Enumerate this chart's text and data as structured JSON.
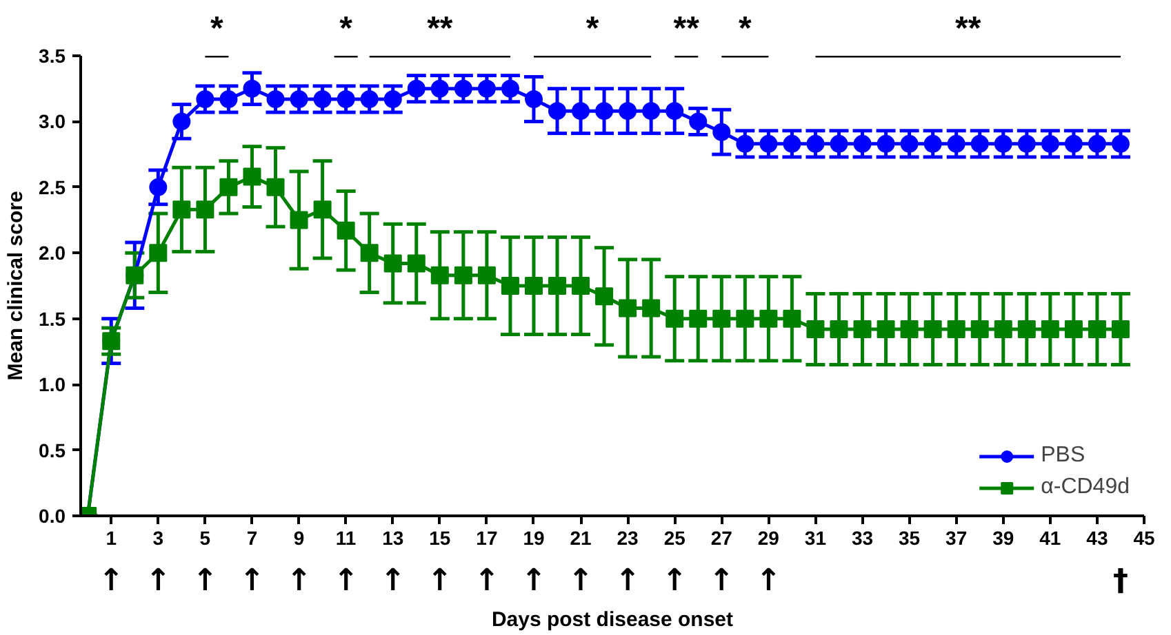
{
  "chart_data": {
    "type": "line",
    "xlabel": "Days post disease onset",
    "ylabel": "Mean clinical score",
    "x": [
      0,
      1,
      2,
      3,
      4,
      5,
      6,
      7,
      8,
      9,
      10,
      11,
      12,
      13,
      14,
      15,
      16,
      17,
      18,
      19,
      20,
      21,
      22,
      23,
      24,
      25,
      26,
      27,
      28,
      29,
      30,
      31,
      32,
      33,
      34,
      35,
      36,
      37,
      38,
      39,
      40,
      41,
      42,
      43,
      44
    ],
    "series": [
      {
        "name": "PBS",
        "color": "#0000ff",
        "marker": "circle",
        "values": [
          0,
          1.33,
          1.83,
          2.5,
          3.0,
          3.17,
          3.17,
          3.25,
          3.17,
          3.17,
          3.17,
          3.17,
          3.17,
          3.17,
          3.25,
          3.25,
          3.25,
          3.25,
          3.25,
          3.17,
          3.08,
          3.08,
          3.08,
          3.08,
          3.08,
          3.08,
          3.0,
          2.92,
          2.83,
          2.83,
          2.83,
          2.83,
          2.83,
          2.83,
          2.83,
          2.83,
          2.83,
          2.83,
          2.83,
          2.83,
          2.83,
          2.83,
          2.83,
          2.83,
          2.83
        ],
        "errors": [
          0,
          0.17,
          0.25,
          0.13,
          0.13,
          0.1,
          0.1,
          0.12,
          0.1,
          0.1,
          0.1,
          0.1,
          0.1,
          0.1,
          0.1,
          0.1,
          0.1,
          0.1,
          0.1,
          0.17,
          0.17,
          0.17,
          0.17,
          0.17,
          0.17,
          0.17,
          0.1,
          0.17,
          0.1,
          0.1,
          0.1,
          0.1,
          0.1,
          0.1,
          0.1,
          0.1,
          0.1,
          0.1,
          0.1,
          0.1,
          0.1,
          0.1,
          0.1,
          0.1,
          0.1
        ]
      },
      {
        "name": "α-CD49d",
        "color": "#008000",
        "marker": "square",
        "values": [
          0,
          1.33,
          1.83,
          2.0,
          2.33,
          2.33,
          2.5,
          2.58,
          2.5,
          2.25,
          2.33,
          2.17,
          2.0,
          1.92,
          1.92,
          1.83,
          1.83,
          1.83,
          1.75,
          1.75,
          1.75,
          1.75,
          1.67,
          1.58,
          1.58,
          1.5,
          1.5,
          1.5,
          1.5,
          1.5,
          1.5,
          1.42,
          1.42,
          1.42,
          1.42,
          1.42,
          1.42,
          1.42,
          1.42,
          1.42,
          1.42,
          1.42,
          1.42,
          1.42,
          1.42
        ],
        "errors": [
          0,
          0.1,
          0.17,
          0.3,
          0.32,
          0.32,
          0.2,
          0.23,
          0.3,
          0.37,
          0.37,
          0.3,
          0.3,
          0.3,
          0.3,
          0.33,
          0.33,
          0.33,
          0.37,
          0.37,
          0.37,
          0.37,
          0.37,
          0.37,
          0.37,
          0.32,
          0.32,
          0.32,
          0.32,
          0.32,
          0.32,
          0.27,
          0.27,
          0.27,
          0.27,
          0.27,
          0.27,
          0.27,
          0.27,
          0.27,
          0.27,
          0.27,
          0.27,
          0.27,
          0.27
        ]
      },
      {
        "type": "line",
        "color": "#000000",
        "marker": "none",
        "x": [
          5,
          6
        ],
        "values": [
          3.5,
          3.5
        ]
      },
      {
        "type": "line",
        "color": "#000000",
        "marker": "none",
        "x": [
          10.5,
          11.5
        ],
        "values": [
          3.5,
          3.5
        ]
      },
      {
        "type": "line",
        "color": "#000000",
        "marker": "none",
        "x": [
          12,
          18
        ],
        "values": [
          3.5,
          3.5
        ]
      },
      {
        "type": "line",
        "color": "#000000",
        "marker": "none",
        "x": [
          19,
          24
        ],
        "values": [
          3.5,
          3.5
        ]
      },
      {
        "type": "line",
        "color": "#000000",
        "marker": "none",
        "x": [
          25,
          26
        ],
        "values": [
          3.5,
          3.5
        ]
      },
      {
        "type": "line",
        "color": "#000000",
        "marker": "none",
        "x": [
          27,
          29
        ],
        "values": [
          3.5,
          3.5
        ]
      },
      {
        "type": "line",
        "color": "#000000",
        "marker": "none",
        "x": [
          31,
          44
        ],
        "values": [
          3.5,
          3.5
        ]
      }
    ],
    "annotations": [
      "*",
      "*",
      "**",
      "*",
      "**",
      "*",
      "**",
      "↑",
      "↑",
      "↑",
      "↑",
      "↑",
      "↑",
      "↑",
      "↑",
      "↑",
      "↑",
      "↑",
      "↑",
      "↑",
      "↑",
      "↑",
      "†"
    ],
    "xlim": [
      -0.3,
      45
    ],
    "xticks": [
      1,
      3,
      5,
      7,
      9,
      11,
      13,
      15,
      17,
      19,
      21,
      23,
      25,
      27,
      29,
      31,
      33,
      35,
      37,
      39,
      41,
      43,
      45
    ],
    "ylim": [
      0,
      3.5
    ],
    "yticks": [
      {
        "value": 0,
        "label": "0.0"
      },
      {
        "value": 0.5,
        "label": "0.5"
      },
      {
        "value": 1,
        "label": "1.0"
      },
      {
        "value": 1.5,
        "label": "1.5"
      },
      {
        "value": 2,
        "label": "2.0"
      },
      {
        "value": 2.5,
        "label": "2.5"
      },
      {
        "value": 3,
        "label": "3.0"
      },
      {
        "value": 3.5,
        "label": "3.5"
      }
    ],
    "grid": false,
    "legend": "bottom right",
    "line_style": "solid"
  }
}
